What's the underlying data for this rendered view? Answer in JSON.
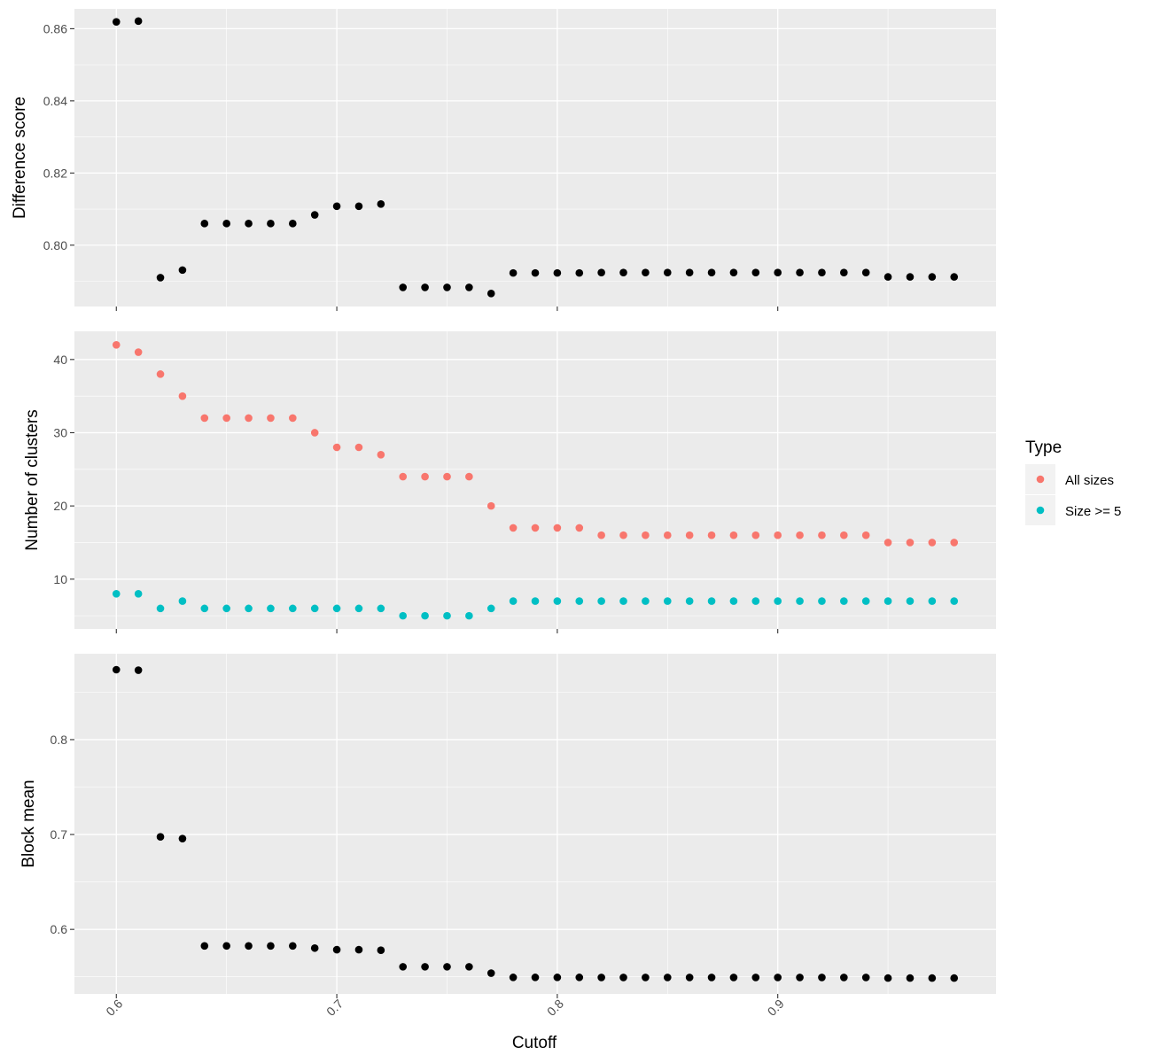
{
  "figure": {
    "xlabel": "Cutoff",
    "panel_background": "#ebebeb",
    "grid_color": "#ffffff"
  },
  "legend": {
    "title": "Type",
    "entries": [
      {
        "label": "All sizes",
        "color": "#f8766d"
      },
      {
        "label": "Size >= 5",
        "color": "#00bfc4"
      }
    ]
  },
  "chart_data": [
    {
      "type": "scatter",
      "title": "",
      "xlabel": "",
      "ylabel": "Difference score",
      "xlim": [
        0.581,
        0.999
      ],
      "ylim": [
        0.783,
        0.8655
      ],
      "x_ticks": [
        0.6,
        0.7,
        0.8,
        0.9
      ],
      "x_tick_labels_shown": false,
      "y_ticks": [
        0.8,
        0.82,
        0.84,
        0.86
      ],
      "y_tick_labels": [
        "0.80",
        "0.82",
        "0.84",
        "0.86"
      ],
      "series": [
        {
          "color": "#000000",
          "x": [
            0.6,
            0.61,
            0.62,
            0.63,
            0.64,
            0.65,
            0.66,
            0.67,
            0.68,
            0.69,
            0.7,
            0.71,
            0.72,
            0.73,
            0.74,
            0.75,
            0.76,
            0.77,
            0.78,
            0.79,
            0.8,
            0.81,
            0.82,
            0.83,
            0.84,
            0.85,
            0.86,
            0.87,
            0.88,
            0.89,
            0.9,
            0.91,
            0.92,
            0.93,
            0.94,
            0.95,
            0.96,
            0.97,
            0.98
          ],
          "y": [
            0.8619,
            0.8621,
            0.791,
            0.7931,
            0.806,
            0.806,
            0.806,
            0.806,
            0.806,
            0.8084,
            0.8108,
            0.8108,
            0.8114,
            0.7883,
            0.7883,
            0.7883,
            0.7883,
            0.7866,
            0.7923,
            0.7923,
            0.7923,
            0.7923,
            0.7924,
            0.7924,
            0.7924,
            0.7924,
            0.7924,
            0.7924,
            0.7924,
            0.7924,
            0.7924,
            0.7924,
            0.7924,
            0.7924,
            0.7924,
            0.7912,
            0.7912,
            0.7912,
            0.7912
          ]
        }
      ]
    },
    {
      "type": "scatter",
      "title": "",
      "xlabel": "",
      "ylabel": "Number of clusters",
      "xlim": [
        0.581,
        0.999
      ],
      "ylim": [
        3.2,
        43.85
      ],
      "x_ticks": [
        0.6,
        0.7,
        0.8,
        0.9
      ],
      "x_tick_labels_shown": false,
      "y_ticks": [
        10,
        20,
        30,
        40
      ],
      "y_tick_labels": [
        "10",
        "20",
        "30",
        "40"
      ],
      "series": [
        {
          "name": "All sizes",
          "color": "#f8766d",
          "x": [
            0.6,
            0.61,
            0.62,
            0.63,
            0.64,
            0.65,
            0.66,
            0.67,
            0.68,
            0.69,
            0.7,
            0.71,
            0.72,
            0.73,
            0.74,
            0.75,
            0.76,
            0.77,
            0.78,
            0.79,
            0.8,
            0.81,
            0.82,
            0.83,
            0.84,
            0.85,
            0.86,
            0.87,
            0.88,
            0.89,
            0.9,
            0.91,
            0.92,
            0.93,
            0.94,
            0.95,
            0.96,
            0.97,
            0.98
          ],
          "y": [
            42,
            41,
            38,
            35,
            32,
            32,
            32,
            32,
            32,
            30,
            28,
            28,
            27,
            24,
            24,
            24,
            24,
            20,
            17,
            17,
            17,
            17,
            16,
            16,
            16,
            16,
            16,
            16,
            16,
            16,
            16,
            16,
            16,
            16,
            16,
            15,
            15,
            15,
            15
          ]
        },
        {
          "name": "Size >= 5",
          "color": "#00bfc4",
          "x": [
            0.6,
            0.61,
            0.62,
            0.63,
            0.64,
            0.65,
            0.66,
            0.67,
            0.68,
            0.69,
            0.7,
            0.71,
            0.72,
            0.73,
            0.74,
            0.75,
            0.76,
            0.77,
            0.78,
            0.79,
            0.8,
            0.81,
            0.82,
            0.83,
            0.84,
            0.85,
            0.86,
            0.87,
            0.88,
            0.89,
            0.9,
            0.91,
            0.92,
            0.93,
            0.94,
            0.95,
            0.96,
            0.97,
            0.98
          ],
          "y": [
            8,
            8,
            6,
            7,
            6,
            6,
            6,
            6,
            6,
            6,
            6,
            6,
            6,
            5,
            5,
            5,
            5,
            6,
            7,
            7,
            7,
            7,
            7,
            7,
            7,
            7,
            7,
            7,
            7,
            7,
            7,
            7,
            7,
            7,
            7,
            7,
            7,
            7,
            7
          ]
        }
      ]
    },
    {
      "type": "scatter",
      "title": "",
      "xlabel": "Cutoff",
      "ylabel": "Block mean",
      "xlim": [
        0.581,
        0.999
      ],
      "ylim": [
        0.532,
        0.8905
      ],
      "x_ticks": [
        0.6,
        0.7,
        0.8,
        0.9
      ],
      "x_tick_labels": [
        "0.6",
        "0.7",
        "0.8",
        "0.9"
      ],
      "y_ticks": [
        0.6,
        0.7,
        0.8
      ],
      "y_tick_labels": [
        "0.6",
        "0.7",
        "0.8"
      ],
      "series": [
        {
          "color": "#000000",
          "x": [
            0.6,
            0.61,
            0.62,
            0.63,
            0.64,
            0.65,
            0.66,
            0.67,
            0.68,
            0.69,
            0.7,
            0.71,
            0.72,
            0.73,
            0.74,
            0.75,
            0.76,
            0.77,
            0.78,
            0.79,
            0.8,
            0.81,
            0.82,
            0.83,
            0.84,
            0.85,
            0.86,
            0.87,
            0.88,
            0.89,
            0.9,
            0.91,
            0.92,
            0.93,
            0.94,
            0.95,
            0.96,
            0.97,
            0.98
          ],
          "y": [
            0.8737,
            0.8732,
            0.6975,
            0.6957,
            0.5826,
            0.5826,
            0.5826,
            0.5826,
            0.5826,
            0.5803,
            0.5786,
            0.5786,
            0.578,
            0.5606,
            0.5606,
            0.5606,
            0.5606,
            0.5539,
            0.5494,
            0.5494,
            0.5494,
            0.5494,
            0.5493,
            0.5493,
            0.5493,
            0.5493,
            0.5493,
            0.5493,
            0.5493,
            0.5493,
            0.5493,
            0.5493,
            0.5493,
            0.5493,
            0.5493,
            0.5487,
            0.5487,
            0.5487,
            0.5487
          ]
        }
      ]
    }
  ]
}
